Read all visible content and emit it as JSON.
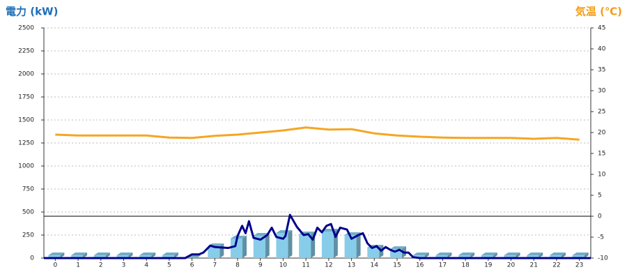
{
  "chart_data": {
    "type": "bar",
    "y_title": "電力 (kW)",
    "y2_title": "気温 (℃)",
    "xlim": [
      -0.5,
      23.5
    ],
    "xticks": [
      0,
      1,
      2,
      3,
      4,
      5,
      6,
      7,
      8,
      9,
      10,
      11,
      12,
      13,
      14,
      15,
      16,
      17,
      18,
      19,
      20,
      21,
      22,
      23
    ],
    "ylim": [
      0,
      2500
    ],
    "yticks": [
      0,
      250,
      500,
      750,
      1000,
      1250,
      1500,
      1750,
      2000,
      2250,
      2500
    ],
    "y2lim": [
      -10,
      45
    ],
    "y2ticks": [
      -10,
      -5,
      0,
      5,
      10,
      15,
      20,
      25,
      30,
      35,
      40,
      45
    ],
    "grid": true,
    "series": [
      {
        "type": "bar",
        "color": "#87cdea",
        "values": [
          30,
          30,
          30,
          30,
          30,
          30,
          0,
          129,
          212,
          242,
          273,
          258,
          288,
          250,
          114,
          98,
          30,
          30,
          30,
          30,
          30,
          30,
          30,
          30
        ]
      },
      {
        "type": "line",
        "color": "#00008b",
        "x": [
          -0.5,
          5.7,
          6.0,
          6.3,
          6.5,
          6.8,
          7.0,
          7.3,
          7.6,
          7.9,
          8.0,
          8.2,
          8.35,
          8.5,
          8.7,
          9.0,
          9.3,
          9.5,
          9.7,
          10.0,
          10.1,
          10.3,
          10.6,
          10.9,
          11.1,
          11.3,
          11.5,
          11.7,
          11.9,
          12.1,
          12.3,
          12.5,
          12.8,
          13.0,
          13.3,
          13.5,
          13.7,
          13.9,
          14.1,
          14.3,
          14.5,
          14.7,
          14.9,
          15.1,
          15.3,
          15.5,
          15.7,
          16.0,
          23.5
        ],
        "values": [
          0,
          0,
          40,
          40,
          60,
          135,
          120,
          115,
          110,
          130,
          240,
          350,
          270,
          400,
          220,
          200,
          250,
          330,
          230,
          210,
          240,
          470,
          340,
          250,
          260,
          200,
          330,
          280,
          350,
          370,
          230,
          330,
          310,
          210,
          250,
          270,
          160,
          110,
          130,
          80,
          120,
          90,
          70,
          90,
          60,
          60,
          10,
          0,
          0
        ]
      },
      {
        "type": "line",
        "axis": "y2",
        "color": "#f5a623",
        "values": [
          19.5,
          19.3,
          19.3,
          19.3,
          19.3,
          18.8,
          18.7,
          19.2,
          19.5,
          20.0,
          20.5,
          21.2,
          20.7,
          20.8,
          19.8,
          19.3,
          19.0,
          18.8,
          18.7,
          18.7,
          18.7,
          18.5,
          18.7,
          18.3
        ]
      }
    ]
  }
}
